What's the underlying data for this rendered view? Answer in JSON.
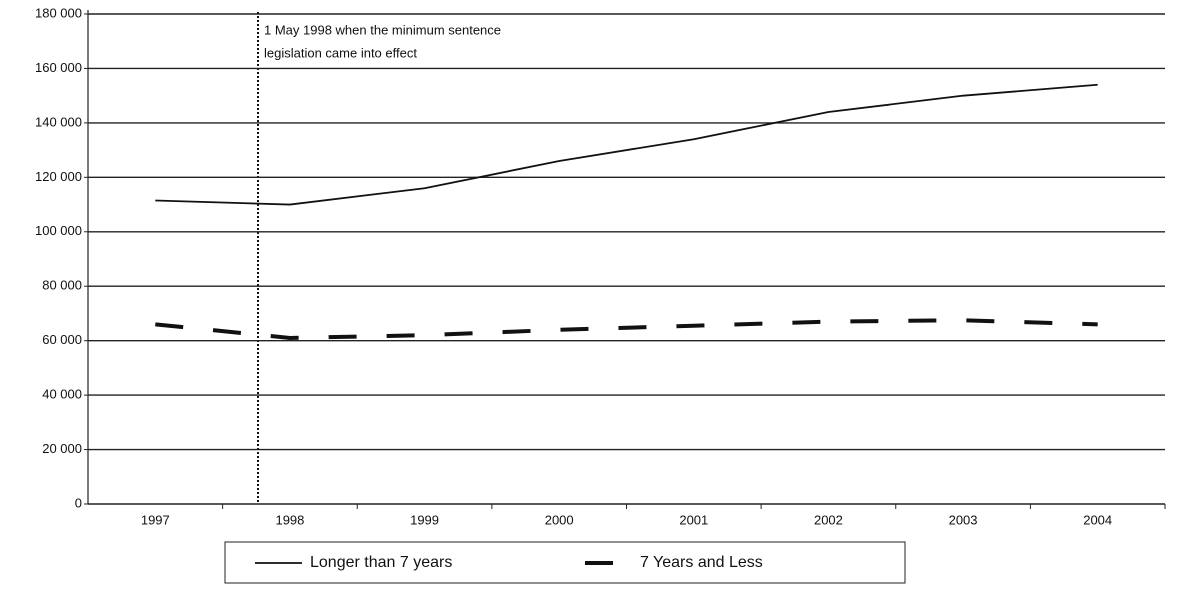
{
  "chart_data": {
    "type": "line",
    "categories": [
      "1997",
      "1998",
      "1999",
      "2000",
      "2001",
      "2002",
      "2003",
      "2004"
    ],
    "series": [
      {
        "name": "Longer than 7 years",
        "color": "#111111",
        "style": "solid",
        "values": [
          111500,
          110000,
          116000,
          126000,
          134000,
          144000,
          150000,
          154000
        ]
      },
      {
        "name": "7 Years and Less",
        "color": "#111111",
        "style": "dashed",
        "values": [
          66000,
          61000,
          62000,
          64000,
          65500,
          67000,
          67500,
          66000
        ]
      }
    ],
    "annotation": [
      "1 May 1998 when the minimum sentence",
      "legislation came into effect"
    ],
    "ylim": [
      0,
      180000
    ],
    "yticks": [
      0,
      {
        "value": 20000,
        "label": "20 000"
      },
      {
        "value": 40000,
        "label": "40 000"
      },
      {
        "value": 60000,
        "label": "60 000"
      },
      {
        "value": 80000,
        "label": "80 000"
      },
      {
        "value": 100000,
        "label": "100 000"
      },
      {
        "value": 120000,
        "label": "120 000"
      },
      {
        "value": 140000,
        "label": "140 000"
      },
      {
        "value": 160000,
        "label": "160 000"
      },
      {
        "value": 180000,
        "label": "180 000"
      }
    ],
    "grid": true,
    "legend": "bottom"
  }
}
